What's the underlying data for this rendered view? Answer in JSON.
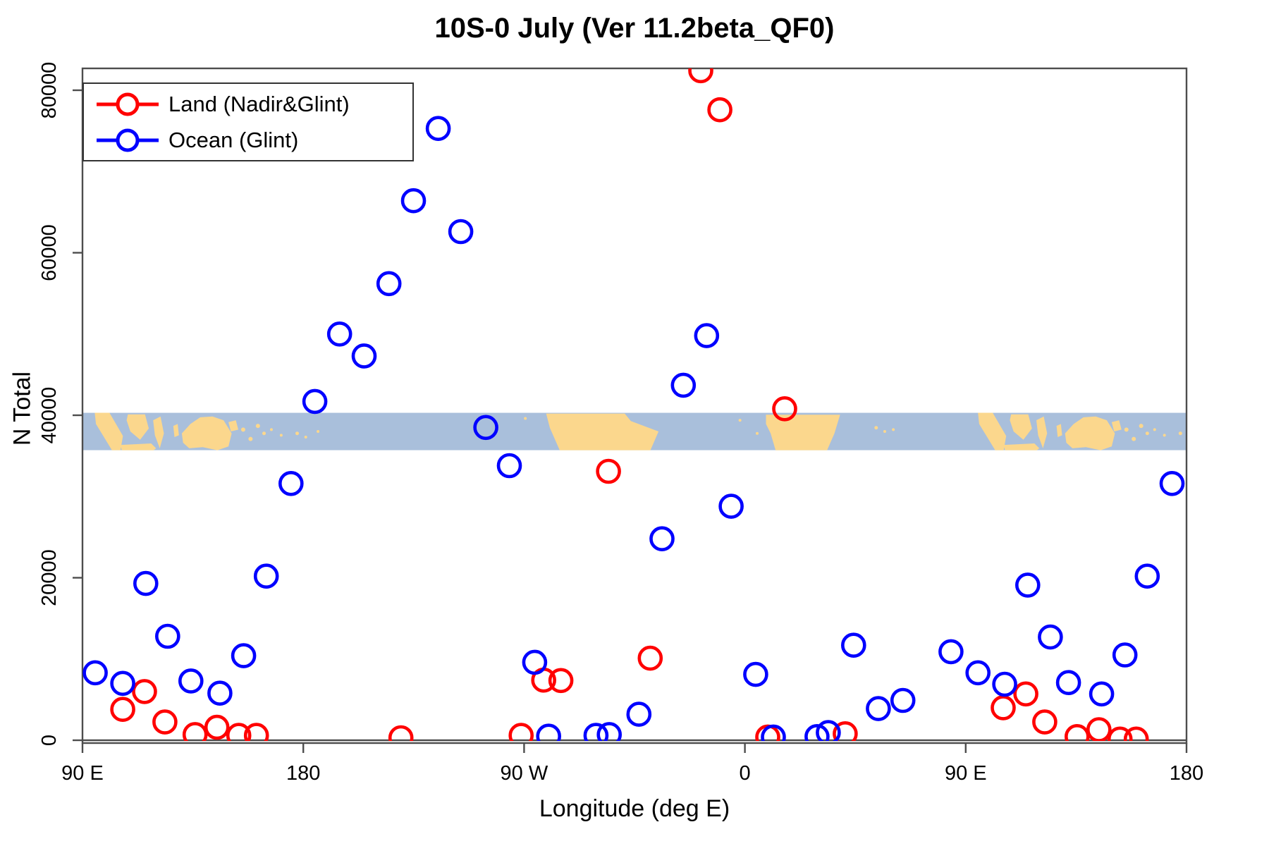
{
  "title": "10S-0 July (Ver 11.2beta_QF0)",
  "x_axis": {
    "label": "Longitude (deg E)",
    "ticks": [
      {
        "label": "90 E",
        "lon": 90
      },
      {
        "label": "180",
        "lon": 180
      },
      {
        "label": "90 W",
        "lon": 270
      },
      {
        "label": "0",
        "lon": 360
      },
      {
        "label": "90 E",
        "lon": 450
      },
      {
        "label": "180",
        "lon": 540
      }
    ]
  },
  "y_axis": {
    "label": "N Total",
    "ticks": [
      {
        "label": "0",
        "value": 0
      },
      {
        "label": "20000",
        "value": 20000
      },
      {
        "label": "40000",
        "value": 40000
      },
      {
        "label": "60000",
        "value": 60000
      },
      {
        "label": "80000",
        "value": 80000
      }
    ]
  },
  "legend": [
    {
      "label": "Land (Nadir&Glint)",
      "color": "#FF0000"
    },
    {
      "label": "Ocean (Glint)",
      "color": "#0000FF"
    }
  ],
  "colors": {
    "land_series": "#FF0000",
    "ocean_series": "#0000FF",
    "map_ocean": "#A9BFDB",
    "map_land": "#FBD78D",
    "axis": "#4d4d4d",
    "text": "#000000"
  },
  "map_band": {
    "top_value": 40300,
    "bottom_value": 35700,
    "polygons": [
      {
        "name": "sumatra",
        "wrap": true,
        "points": [
          [
            95,
            0
          ],
          [
            101,
            0
          ],
          [
            106.5,
            0.62
          ],
          [
            105.5,
            1
          ],
          [
            102,
            1
          ],
          [
            95.5,
            0.3
          ]
        ]
      },
      {
        "name": "borneo",
        "wrap": true,
        "points": [
          [
            108.5,
            0.04
          ],
          [
            115.5,
            0.04
          ],
          [
            117,
            0.42
          ],
          [
            113.5,
            0.72
          ],
          [
            109.5,
            0.5
          ],
          [
            108,
            0.2
          ]
        ]
      },
      {
        "name": "sulawesi",
        "wrap": true,
        "points": [
          [
            118.8,
            0.2
          ],
          [
            121.8,
            0.1
          ],
          [
            123.2,
            0.55
          ],
          [
            121.5,
            0.95
          ],
          [
            119.5,
            0.6
          ]
        ]
      },
      {
        "name": "java-strip",
        "wrap": true,
        "points": [
          [
            105.5,
            0.86
          ],
          [
            118,
            0.82
          ],
          [
            120,
            0.95
          ],
          [
            119,
            1
          ],
          [
            106,
            1
          ]
        ]
      },
      {
        "name": "halmahera",
        "wrap": true,
        "points": [
          [
            127,
            0.35
          ],
          [
            128.8,
            0.3
          ],
          [
            129.3,
            0.6
          ],
          [
            127.5,
            0.65
          ]
        ]
      },
      {
        "name": "new-guinea",
        "wrap": true,
        "points": [
          [
            130.5,
            0.55
          ],
          [
            134,
            0.3
          ],
          [
            138,
            0.12
          ],
          [
            143,
            0.1
          ],
          [
            147.5,
            0.2
          ],
          [
            150.8,
            0.55
          ],
          [
            149.5,
            0.9
          ],
          [
            145,
            1
          ],
          [
            139,
            0.92
          ],
          [
            133.5,
            0.95
          ],
          [
            131,
            0.8
          ]
        ]
      },
      {
        "name": "new-britain",
        "wrap": true,
        "points": [
          [
            149.5,
            0.25
          ],
          [
            152.5,
            0.2
          ],
          [
            153.5,
            0.45
          ],
          [
            150.5,
            0.5
          ]
        ]
      },
      {
        "name": "south-america",
        "wrap": false,
        "points": [
          [
            279,
            0.02
          ],
          [
            311,
            0.02
          ],
          [
            313.5,
            0.22
          ],
          [
            324.8,
            0.5
          ],
          [
            321.5,
            1
          ],
          [
            284.5,
            1
          ],
          [
            280.5,
            0.4
          ]
        ]
      },
      {
        "name": "africa",
        "wrap": false,
        "points": [
          [
            368.6,
            0.05
          ],
          [
            398.8,
            0.05
          ],
          [
            396.5,
            0.55
          ],
          [
            393.5,
            1
          ],
          [
            372.5,
            1
          ],
          [
            370.5,
            0.55
          ],
          [
            368.6,
            0.3
          ]
        ]
      }
    ],
    "dots": [
      {
        "lon": 155.5,
        "frac": 0.45,
        "r": 3,
        "wrap": true
      },
      {
        "lon": 158.5,
        "frac": 0.7,
        "r": 3,
        "wrap": true
      },
      {
        "lon": 161.5,
        "frac": 0.35,
        "r": 3,
        "wrap": true
      },
      {
        "lon": 164,
        "frac": 0.55,
        "r": 2.5,
        "wrap": true
      },
      {
        "lon": 167,
        "frac": 0.45,
        "r": 2,
        "wrap": true
      },
      {
        "lon": 171,
        "frac": 0.6,
        "r": 2,
        "wrap": true
      },
      {
        "lon": 177.5,
        "frac": 0.55,
        "r": 2.5,
        "wrap": true
      },
      {
        "lon": 181,
        "frac": 0.65,
        "r": 2,
        "wrap": false
      },
      {
        "lon": 186,
        "frac": 0.5,
        "r": 2,
        "wrap": false
      },
      {
        "lon": 270.5,
        "frac": 0.15,
        "r": 2,
        "wrap": false
      },
      {
        "lon": 358,
        "frac": 0.2,
        "r": 2,
        "wrap": false
      },
      {
        "lon": 365,
        "frac": 0.55,
        "r": 2,
        "wrap": false
      },
      {
        "lon": 413.5,
        "frac": 0.4,
        "r": 2.5,
        "wrap": false
      },
      {
        "lon": 417,
        "frac": 0.5,
        "r": 2,
        "wrap": false
      },
      {
        "lon": 420.5,
        "frac": 0.45,
        "r": 2,
        "wrap": false
      }
    ]
  },
  "chart_data": {
    "type": "scatter",
    "title": "10S-0 July (Ver 11.2beta_QF0)",
    "xlabel": "Longitude (deg E)",
    "ylabel": "N Total",
    "x_axis_note": "extended longitude axis 90..540 deg E (wraps: 270=90W, 360=0, 450=90E, 540=180)",
    "xlim": [
      90,
      540
    ],
    "ylim": [
      0,
      82700
    ],
    "grid": false,
    "legend_position": "top-left",
    "marker": "open-circle",
    "series": [
      {
        "name": "Land (Nadir&Glint)",
        "color": "#FF0000",
        "points": [
          [
            106.4,
            3800
          ],
          [
            115.3,
            6000
          ],
          [
            123.6,
            2250
          ],
          [
            135.9,
            700
          ],
          [
            144.8,
            1600
          ],
          [
            153.7,
            600
          ],
          [
            160.9,
            600
          ],
          [
            219.8,
            300
          ],
          [
            268.8,
            600
          ],
          [
            278.0,
            7400
          ],
          [
            285.0,
            7350
          ],
          [
            304.4,
            33100
          ],
          [
            321.4,
            10100
          ],
          [
            342.0,
            82400
          ],
          [
            349.8,
            77600
          ],
          [
            369.3,
            400
          ],
          [
            376.2,
            40800
          ],
          [
            400.9,
            800
          ],
          [
            465.3,
            4000
          ],
          [
            474.5,
            5700
          ],
          [
            482.2,
            2250
          ],
          [
            495.4,
            450
          ],
          [
            504.3,
            1300
          ],
          [
            512.9,
            150
          ],
          [
            519.5,
            150
          ]
        ]
      },
      {
        "name": "Ocean (Glint)",
        "color": "#0000FF",
        "points": [
          [
            95.2,
            8300
          ],
          [
            106.4,
            7000
          ],
          [
            115.8,
            19300
          ],
          [
            124.7,
            12800
          ],
          [
            134.2,
            7300
          ],
          [
            146.0,
            5800
          ],
          [
            155.7,
            10400
          ],
          [
            164.9,
            20200
          ],
          [
            175.0,
            31600
          ],
          [
            184.7,
            41700
          ],
          [
            194.8,
            50000
          ],
          [
            204.8,
            47300
          ],
          [
            214.9,
            56200
          ],
          [
            224.9,
            66400
          ],
          [
            235.0,
            75300
          ],
          [
            244.2,
            62600
          ],
          [
            254.4,
            38500
          ],
          [
            264.0,
            33800
          ],
          [
            274.3,
            9600
          ],
          [
            280.0,
            500
          ],
          [
            299.3,
            600
          ],
          [
            304.7,
            700
          ],
          [
            316.8,
            3200
          ],
          [
            326.2,
            24800
          ],
          [
            334.9,
            43700
          ],
          [
            344.4,
            49800
          ],
          [
            354.4,
            28800
          ],
          [
            364.4,
            8100
          ],
          [
            371.6,
            400
          ],
          [
            389.4,
            450
          ],
          [
            394.0,
            950
          ],
          [
            404.3,
            11700
          ],
          [
            414.4,
            3900
          ],
          [
            424.4,
            4900
          ],
          [
            444.0,
            10900
          ],
          [
            455.0,
            8300
          ],
          [
            465.9,
            6900
          ],
          [
            475.3,
            19100
          ],
          [
            484.5,
            12700
          ],
          [
            491.9,
            7100
          ],
          [
            505.4,
            5700
          ],
          [
            514.9,
            10500
          ],
          [
            524.0,
            20200
          ],
          [
            534.1,
            31600
          ]
        ]
      }
    ]
  }
}
